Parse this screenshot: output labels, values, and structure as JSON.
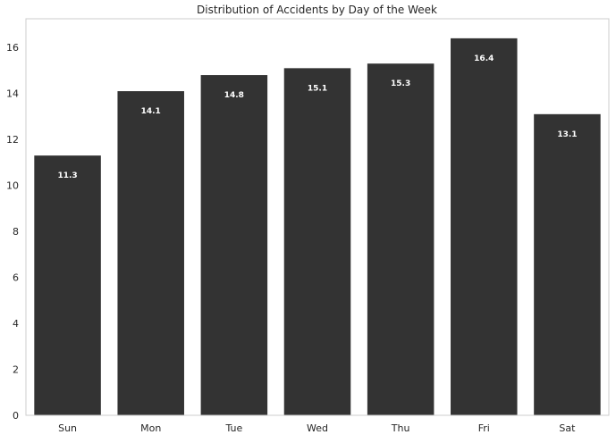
{
  "chart_data": {
    "type": "bar",
    "title": "Distribution of Accidents by Day of the Week",
    "xlabel": "",
    "ylabel": "",
    "categories": [
      "Sun",
      "Mon",
      "Tue",
      "Wed",
      "Thu",
      "Fri",
      "Sat"
    ],
    "values": [
      11.3,
      14.1,
      14.8,
      15.1,
      15.3,
      16.4,
      13.1
    ],
    "data_labels": [
      "11.3",
      "14.1",
      "14.8",
      "15.1",
      "15.3",
      "16.4",
      "13.1"
    ],
    "ylim": [
      0,
      17.25
    ],
    "yticks": [
      0,
      2,
      4,
      6,
      8,
      10,
      12,
      14,
      16
    ],
    "grid": false,
    "colors": {
      "bar": "#333333",
      "label": "#ffffff",
      "text": "#262626",
      "frame": "#cccccc"
    }
  }
}
